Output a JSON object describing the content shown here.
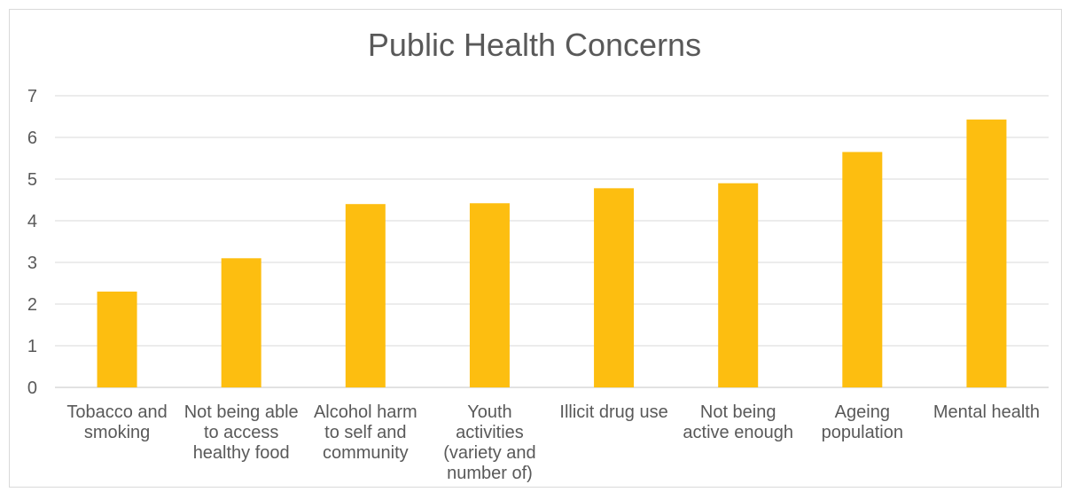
{
  "chart_data": {
    "type": "bar",
    "title": "Public Health Concerns",
    "categories": [
      [
        "Tobacco and",
        "smoking"
      ],
      [
        "Not being able",
        "to access",
        "healthy food"
      ],
      [
        "Alcohol harm",
        "to self and",
        "community"
      ],
      [
        "Youth",
        "activities",
        "(variety and",
        "number of)"
      ],
      [
        "Illicit drug use"
      ],
      [
        "Not being",
        "active enough"
      ],
      [
        "Ageing",
        "population"
      ],
      [
        "Mental health"
      ]
    ],
    "values": [
      2.3,
      3.1,
      4.4,
      4.42,
      4.78,
      4.9,
      5.65,
      6.43
    ],
    "ylim": [
      0,
      7
    ],
    "yticks": [
      0,
      1,
      2,
      3,
      4,
      5,
      6,
      7
    ],
    "grid": true,
    "legend": "none",
    "colors": {
      "bar": "#FDBE10",
      "grid": "#d9d9d9",
      "text": "#595959"
    }
  }
}
